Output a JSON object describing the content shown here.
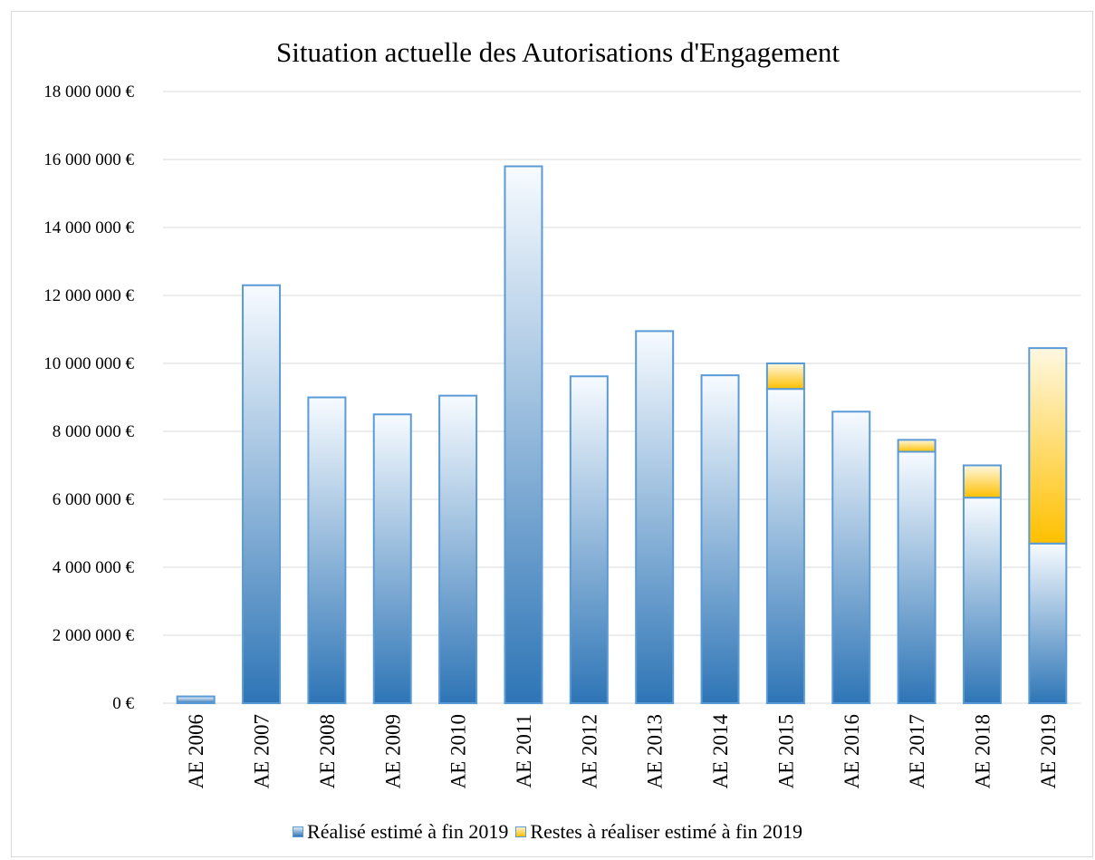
{
  "chart_data": {
    "type": "bar",
    "stacked": true,
    "title": "Situation actuelle des Autorisations d'Engagement",
    "categories": [
      "AE 2006",
      "AE 2007",
      "AE 2008",
      "AE 2009",
      "AE 2010",
      "AE 2011",
      "AE 2012",
      "AE 2013",
      "AE 2014",
      "AE 2015",
      "AE 2016",
      "AE 2017",
      "AE 2018",
      "AE 2019"
    ],
    "series": [
      {
        "name": "Réalisé estimé à fin 2019",
        "values": [
          200000,
          12300000,
          9000000,
          8500000,
          9050000,
          15800000,
          9620000,
          10950000,
          9650000,
          9250000,
          8580000,
          7400000,
          6050000,
          4700000
        ],
        "color": "#2e75b6"
      },
      {
        "name": "Restes à réaliser estimé à fin 2019",
        "values": [
          0,
          0,
          0,
          0,
          0,
          0,
          0,
          0,
          0,
          750000,
          0,
          350000,
          950000,
          5750000
        ],
        "color": "#ffc000"
      }
    ],
    "ylim": [
      0,
      18000000
    ],
    "yticks": [
      0,
      2000000,
      4000000,
      6000000,
      8000000,
      10000000,
      12000000,
      14000000,
      16000000,
      18000000
    ],
    "ytick_labels": [
      "0 €",
      "2 000 000 €",
      "4 000 000 €",
      "6 000 000 €",
      "8 000 000 €",
      "10 000 000 €",
      "12 000 000 €",
      "14 000 000 €",
      "16 000 000 €",
      "18 000 000 €"
    ],
    "grid": true,
    "legend_position": "bottom",
    "border_color": "#5b9bd5",
    "grid_color": "#d9d9d9"
  }
}
